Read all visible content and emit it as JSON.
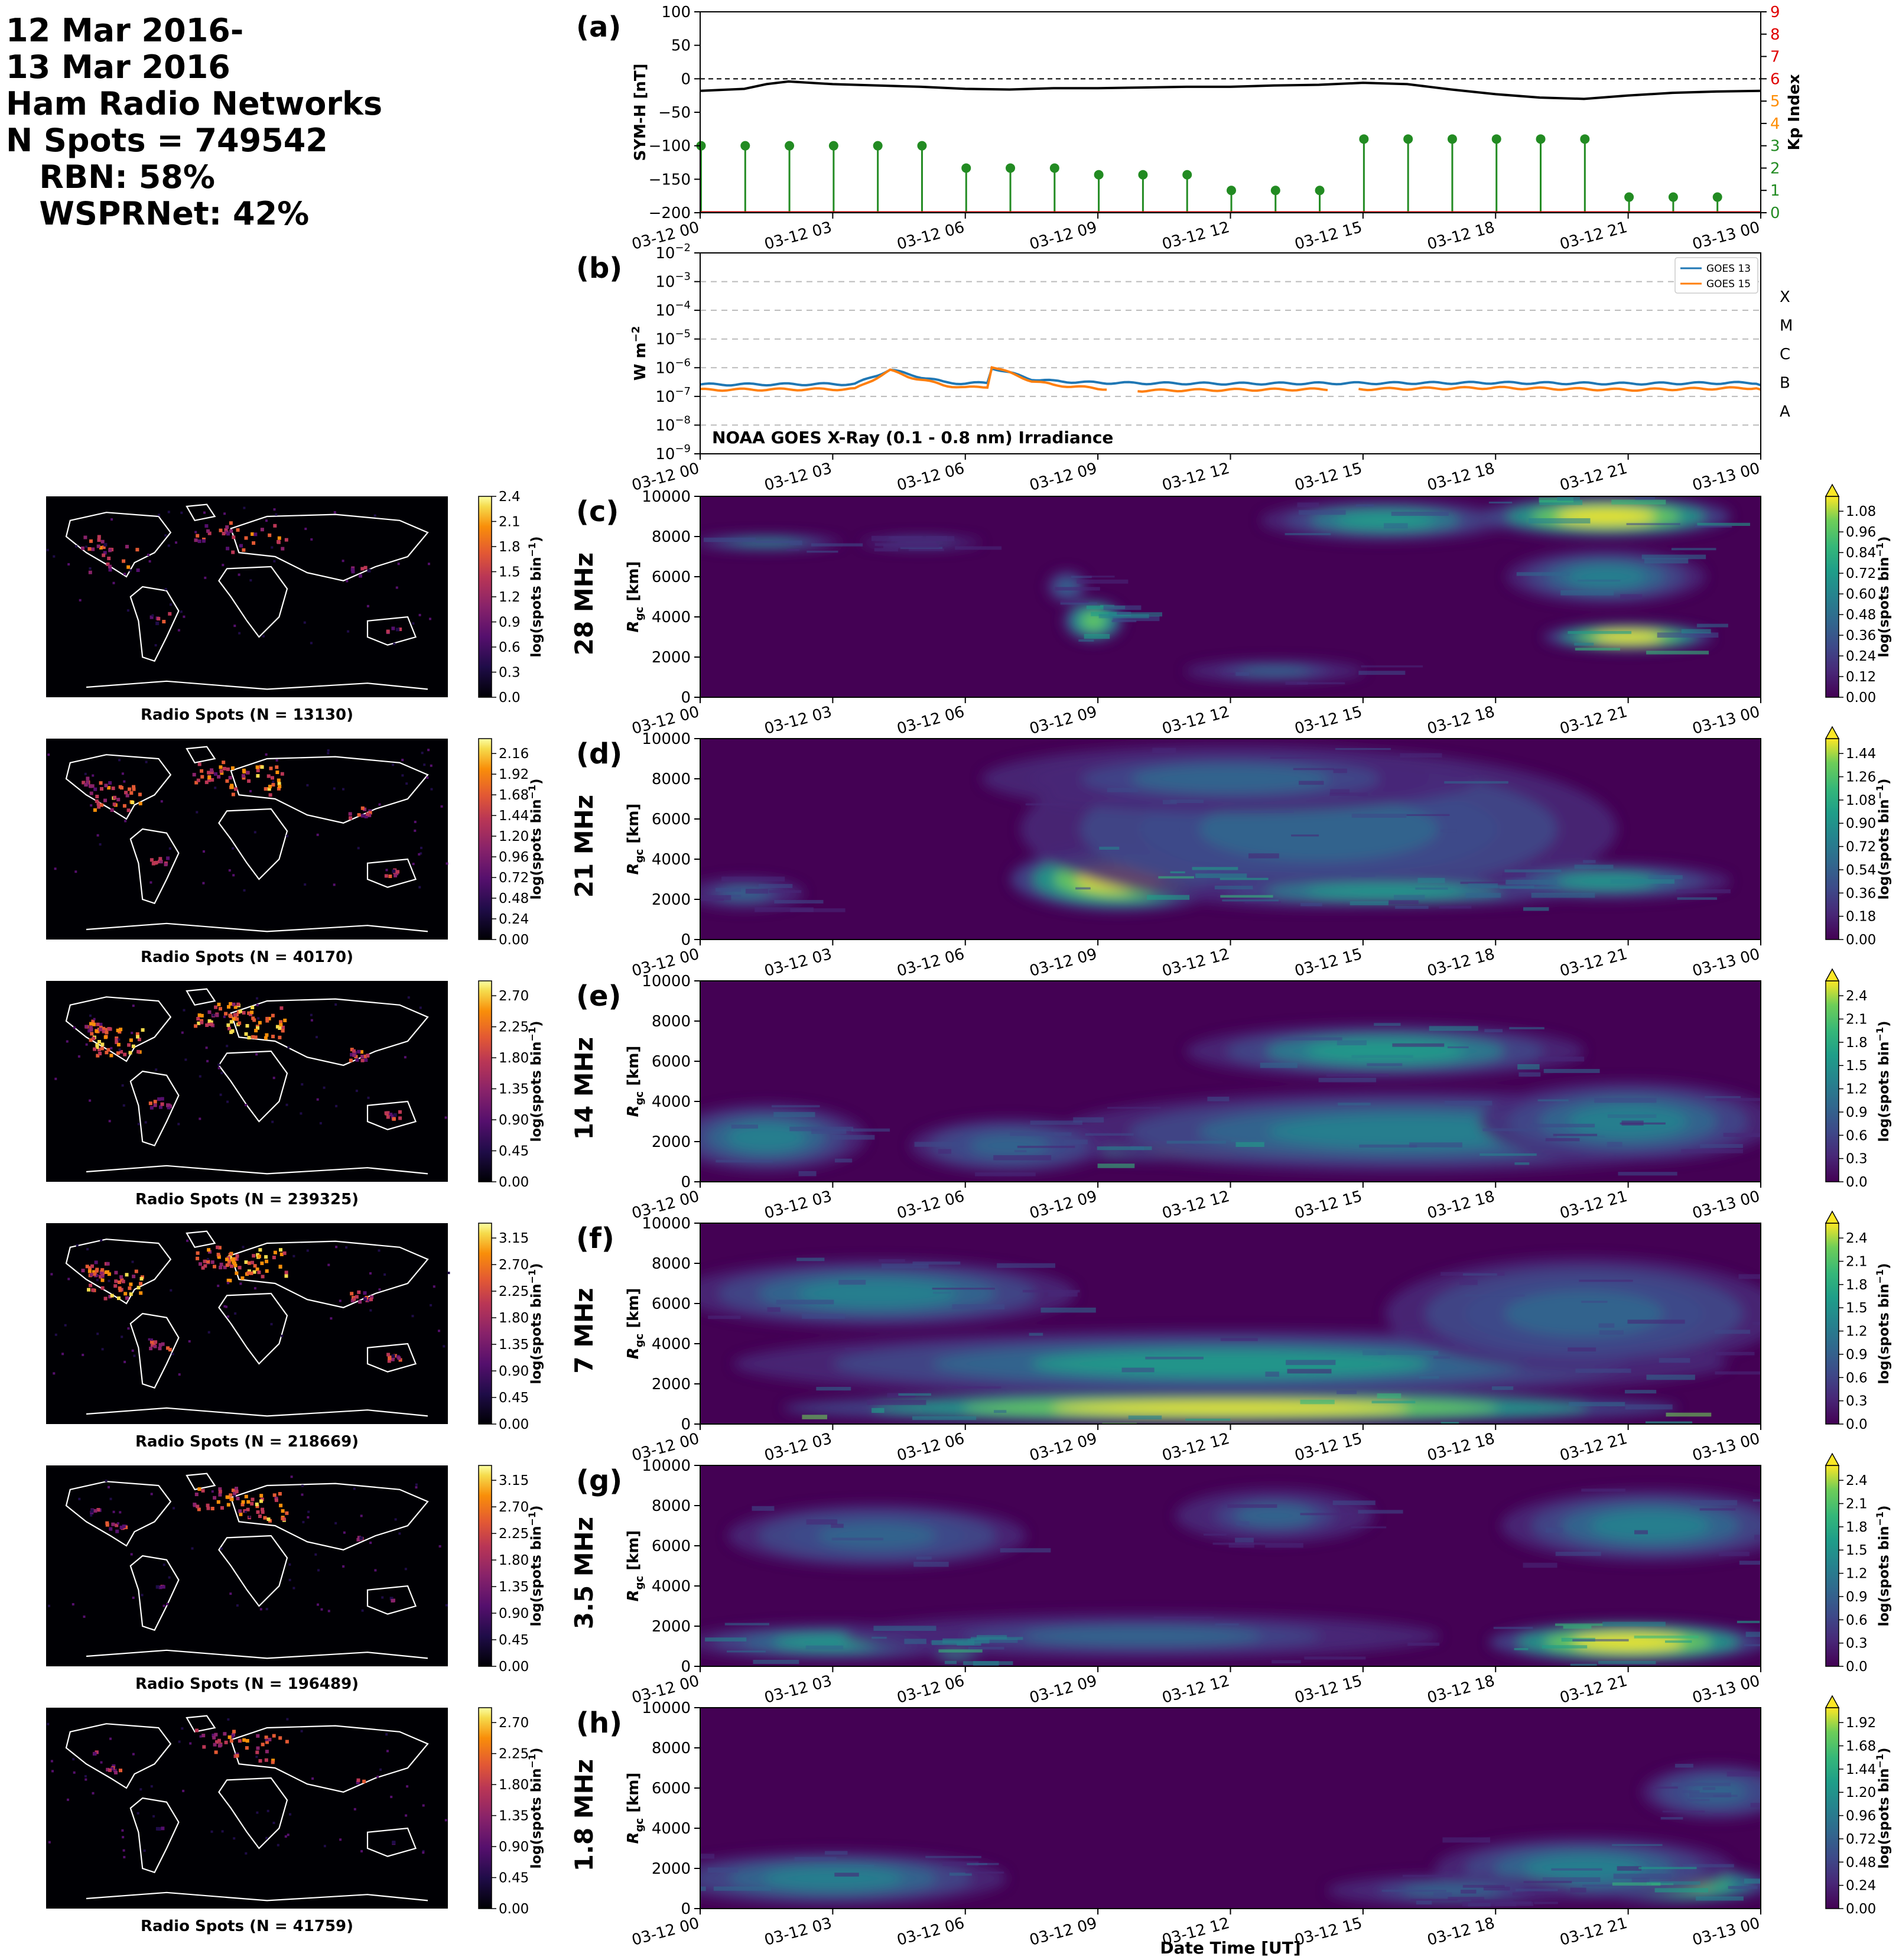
{
  "header": {
    "lines": [
      "12 Mar 2016-",
      "13 Mar 2016",
      "Ham Radio Networks",
      "N Spots = 749542",
      "   RBN: 58%",
      "   WSPRNet: 42%"
    ]
  },
  "time_ticks": [
    "03-12 00",
    "03-12 03",
    "03-12 06",
    "03-12 09",
    "03-12 12",
    "03-12 15",
    "03-12 18",
    "03-12 21",
    "03-13 00"
  ],
  "xlabel": "Date Time [UT]",
  "colors": {
    "symh": "#000000",
    "kp_green": "#228B22",
    "kp_axis_red": "#e00000",
    "kp_axis_orange": "#ff8c00",
    "goes13": "#1f77b4",
    "goes15": "#ff7f0e",
    "map_bg": "#000004",
    "viridis_low": "#440154",
    "viridis_high": "#fde725"
  },
  "chart_data": [
    {
      "id": "a",
      "panel_label": "(a)",
      "type": "line",
      "ylabel": "SYM-H [nT]",
      "ylim": [
        -200,
        100
      ],
      "yticks": [
        "100",
        "50",
        "0",
        "−50",
        "−100",
        "−150",
        "−200"
      ],
      "y2label": "Kp Index",
      "y2lim": [
        0,
        9
      ],
      "y2ticks": [
        "0",
        "1",
        "2",
        "3",
        "4",
        "5",
        "6",
        "7",
        "8",
        "9"
      ],
      "symh": {
        "x": [
          0,
          1,
          1.5,
          2,
          3,
          4,
          5,
          6,
          7,
          8,
          9,
          10,
          11,
          12,
          13,
          14,
          15,
          16,
          16.5,
          17,
          18,
          19,
          20,
          21,
          22,
          23,
          24
        ],
        "y": [
          -18,
          -15,
          -8,
          -4,
          -8,
          -10,
          -12,
          -15,
          -16,
          -14,
          -14,
          -13,
          -12,
          -12,
          -10,
          -9,
          -6,
          -8,
          -12,
          -16,
          -23,
          -28,
          -30,
          -25,
          -21,
          -19,
          -18
        ]
      },
      "kp": {
        "x": [
          0,
          1,
          2,
          3,
          4,
          5,
          6,
          7,
          8,
          9,
          10,
          11,
          12,
          13,
          14,
          15,
          16,
          17,
          18,
          19,
          20,
          21,
          22,
          23
        ],
        "y": [
          3.0,
          3.0,
          3.0,
          3.0,
          3.0,
          3.0,
          2.0,
          2.0,
          2.0,
          1.7,
          1.7,
          1.7,
          1.0,
          1.0,
          1.0,
          3.3,
          3.3,
          3.3,
          3.3,
          3.3,
          3.3,
          0.7,
          0.7,
          0.7
        ]
      }
    },
    {
      "id": "b",
      "panel_label": "(b)",
      "type": "line",
      "ylabel": "W m",
      "ylabel_sup": "−2",
      "yscale": "log",
      "ylim": [
        1e-09,
        0.01
      ],
      "ytick_exponents": [
        "−9",
        "−8",
        "−7",
        "−6",
        "−5",
        "−4",
        "−3",
        "−2"
      ],
      "class_labels": [
        "A",
        "B",
        "C",
        "M",
        "X"
      ],
      "annotation": "NOAA GOES X-Ray (0.1 - 0.8 nm) Irradiance",
      "series": [
        {
          "name": "GOES 13",
          "x": [
            0,
            3.5,
            4.3,
            4.7,
            5.5,
            6.0,
            6.5,
            6.6,
            7.5,
            8,
            9,
            10,
            12,
            15,
            18,
            21,
            24
          ],
          "y": [
            2.6e-07,
            2.7e-07,
            8.5e-07,
            6e-07,
            3.2e-07,
            2.8e-07,
            3e-07,
            1e-06,
            4e-07,
            3.4e-07,
            3e-07,
            2.9e-07,
            2.8e-07,
            2.9e-07,
            3e-07,
            2.8e-07,
            3e-07
          ]
        },
        {
          "name": "GOES 15",
          "x": [
            0,
            3.5,
            4.3,
            4.7,
            5.5,
            6.0,
            6.5,
            6.6,
            7.5,
            8,
            9,
            10,
            12,
            15,
            18,
            21,
            24
          ],
          "y": [
            1.7e-07,
            1.8e-07,
            8e-07,
            5e-07,
            2.5e-07,
            2e-07,
            2.2e-07,
            1.1e-06,
            3.5e-07,
            2.5e-07,
            1.9e-07,
            1.6e-07,
            1.7e-07,
            1.8e-07,
            2e-07,
            1.7e-07,
            2e-07
          ]
        }
      ],
      "gaps": [
        [
          9.2,
          9.8
        ],
        [
          14.2,
          14.8
        ]
      ]
    },
    {
      "id": "c",
      "panel_label": "(c)",
      "band": "28 MHz",
      "type": "heatmap",
      "ylabel": "R",
      "ylabel_sub": "gc",
      "ylabel_unit": " [km]",
      "yticks": [
        "0",
        "2000",
        "4000",
        "6000",
        "8000",
        "10000"
      ],
      "ylim": [
        0,
        10000
      ],
      "cbar_label": "log(spots bin",
      "cbar_sup": "−1",
      "cbar_ticks": [
        "0.00",
        "0.12",
        "0.24",
        "0.36",
        "0.48",
        "0.60",
        "0.72",
        "0.84",
        "0.96",
        "1.08"
      ],
      "cbar_max": 1.08,
      "map_title": "Radio Spots (N = 13130)",
      "map_cbar_ticks": [
        "0.0",
        "0.3",
        "0.6",
        "0.9",
        "1.2",
        "1.5",
        "1.8",
        "2.1",
        "2.4"
      ],
      "blobs": [
        {
          "t": 1.5,
          "r": 7700,
          "st": 1.5,
          "sr": 350,
          "a": 0.45
        },
        {
          "t": 5.0,
          "r": 7700,
          "st": 1.2,
          "sr": 300,
          "a": 0.25
        },
        {
          "t": 8.9,
          "r": 3800,
          "st": 0.6,
          "sr": 900,
          "a": 0.8
        },
        {
          "t": 8.3,
          "r": 5500,
          "st": 0.4,
          "sr": 700,
          "a": 0.35
        },
        {
          "t": 13.0,
          "r": 1300,
          "st": 1.8,
          "sr": 500,
          "a": 0.3
        },
        {
          "t": 15.5,
          "r": 8800,
          "st": 2.5,
          "sr": 900,
          "a": 0.55
        },
        {
          "t": 20.5,
          "r": 9000,
          "st": 2.5,
          "sr": 900,
          "a": 1.0
        },
        {
          "t": 21.0,
          "r": 3000,
          "st": 1.7,
          "sr": 600,
          "a": 1.0
        },
        {
          "t": 20.5,
          "r": 6000,
          "st": 2.0,
          "sr": 1200,
          "a": 0.45
        }
      ]
    },
    {
      "id": "d",
      "panel_label": "(d)",
      "band": "21 MHz",
      "type": "heatmap",
      "ylabel": "R",
      "ylabel_sub": "gc",
      "ylabel_unit": " [km]",
      "yticks": [
        "0",
        "2000",
        "4000",
        "6000",
        "8000",
        "10000"
      ],
      "ylim": [
        0,
        10000
      ],
      "cbar_label": "log(spots bin",
      "cbar_sup": "−1",
      "cbar_ticks": [
        "0.00",
        "0.18",
        "0.36",
        "0.54",
        "0.72",
        "0.90",
        "1.08",
        "1.26",
        "1.44"
      ],
      "cbar_max": 1.44,
      "map_title": "Radio Spots (N = 40170)",
      "map_cbar_ticks": [
        "0.00",
        "0.24",
        "0.48",
        "0.72",
        "0.96",
        "1.20",
        "1.44",
        "1.68",
        "1.92",
        "2.16"
      ],
      "blobs": [
        {
          "t": 1.0,
          "r": 2300,
          "st": 1.2,
          "sr": 700,
          "a": 0.3
        },
        {
          "t": 9.5,
          "r": 3000,
          "st": 2.2,
          "sr": 1400,
          "a": 1.0
        },
        {
          "t": 14.0,
          "r": 5500,
          "st": 6.0,
          "sr": 3500,
          "a": 0.35
        },
        {
          "t": 15.5,
          "r": 2400,
          "st": 4.0,
          "sr": 700,
          "a": 0.55
        },
        {
          "t": 20.5,
          "r": 2900,
          "st": 2.5,
          "sr": 800,
          "a": 0.5
        },
        {
          "t": 12.0,
          "r": 8000,
          "st": 5.0,
          "sr": 1500,
          "a": 0.3
        }
      ]
    },
    {
      "id": "e",
      "panel_label": "(e)",
      "band": "14 MHz",
      "type": "heatmap",
      "ylabel": "R",
      "ylabel_sub": "gc",
      "ylabel_unit": " [km]",
      "yticks": [
        "0",
        "2000",
        "4000",
        "6000",
        "8000",
        "10000"
      ],
      "ylim": [
        0,
        10000
      ],
      "cbar_label": "log(spots bin",
      "cbar_sup": "−1",
      "cbar_ticks": [
        "0.0",
        "0.3",
        "0.6",
        "0.9",
        "1.2",
        "1.5",
        "1.8",
        "2.1",
        "2.4"
      ],
      "cbar_max": 2.4,
      "map_title": "Radio Spots (N = 239325)",
      "map_cbar_ticks": [
        "0.00",
        "0.45",
        "0.90",
        "1.35",
        "1.80",
        "2.25",
        "2.70"
      ],
      "blobs": [
        {
          "t": 1.5,
          "r": 2200,
          "st": 2.0,
          "sr": 1500,
          "a": 0.4
        },
        {
          "t": 13.5,
          "r": 1500,
          "st": 5.0,
          "sr": 500,
          "a": 1.0
        },
        {
          "t": 16.0,
          "r": 2500,
          "st": 7.0,
          "sr": 1800,
          "a": 0.45
        },
        {
          "t": 15.5,
          "r": 6500,
          "st": 4.0,
          "sr": 1200,
          "a": 0.55
        },
        {
          "t": 21.0,
          "r": 3000,
          "st": 3.0,
          "sr": 1800,
          "a": 0.4
        },
        {
          "t": 7.0,
          "r": 1800,
          "st": 2.0,
          "sr": 1200,
          "a": 0.35
        }
      ]
    },
    {
      "id": "f",
      "panel_label": "(f)",
      "band": "7 MHz",
      "type": "heatmap",
      "ylabel": "R",
      "ylabel_sub": "gc",
      "ylabel_unit": " [km]",
      "yticks": [
        "0",
        "2000",
        "4000",
        "6000",
        "8000",
        "10000"
      ],
      "ylim": [
        0,
        10000
      ],
      "cbar_label": "log(spots bin",
      "cbar_sup": "−1",
      "cbar_ticks": [
        "0.0",
        "0.3",
        "0.6",
        "0.9",
        "1.2",
        "1.5",
        "1.8",
        "2.1",
        "2.4"
      ],
      "cbar_max": 2.4,
      "map_title": "Radio Spots (N = 218669)",
      "map_cbar_ticks": [
        "0.00",
        "0.45",
        "0.90",
        "1.35",
        "1.80",
        "2.25",
        "2.70",
        "3.15"
      ],
      "blobs": [
        {
          "t": 12.0,
          "r": 800,
          "st": 9.0,
          "sr": 700,
          "a": 1.0
        },
        {
          "t": 12.0,
          "r": 3000,
          "st": 10.0,
          "sr": 1500,
          "a": 0.5
        },
        {
          "t": 4.0,
          "r": 6500,
          "st": 4.0,
          "sr": 1500,
          "a": 0.4
        },
        {
          "t": 20.0,
          "r": 5500,
          "st": 4.0,
          "sr": 2500,
          "a": 0.35
        }
      ]
    },
    {
      "id": "g",
      "panel_label": "(g)",
      "band": "3.5 MHz",
      "type": "heatmap",
      "ylabel": "R",
      "ylabel_sub": "gc",
      "ylabel_unit": " [km]",
      "yticks": [
        "0",
        "2000",
        "4000",
        "6000",
        "8000",
        "10000"
      ],
      "ylim": [
        0,
        10000
      ],
      "cbar_label": "log(spots bin",
      "cbar_sup": "−1",
      "cbar_ticks": [
        "0.0",
        "0.3",
        "0.6",
        "0.9",
        "1.2",
        "1.5",
        "1.8",
        "2.1",
        "2.4"
      ],
      "cbar_max": 2.4,
      "map_title": "Radio Spots (N = 196489)",
      "map_cbar_ticks": [
        "0.00",
        "0.45",
        "0.90",
        "1.35",
        "1.80",
        "2.25",
        "2.70",
        "3.15"
      ],
      "blobs": [
        {
          "t": 21.0,
          "r": 1200,
          "st": 2.8,
          "sr": 900,
          "a": 1.0
        },
        {
          "t": 5.8,
          "r": 900,
          "st": 0.6,
          "sr": 600,
          "a": 0.8
        },
        {
          "t": 3.0,
          "r": 1200,
          "st": 3.0,
          "sr": 800,
          "a": 0.5
        },
        {
          "t": 4.0,
          "r": 6500,
          "st": 3.0,
          "sr": 1400,
          "a": 0.35
        },
        {
          "t": 13.0,
          "r": 7500,
          "st": 2.0,
          "sr": 1200,
          "a": 0.3
        },
        {
          "t": 21.5,
          "r": 7000,
          "st": 3.0,
          "sr": 1600,
          "a": 0.4
        },
        {
          "t": 10.0,
          "r": 1500,
          "st": 6.0,
          "sr": 1000,
          "a": 0.28
        }
      ]
    },
    {
      "id": "h",
      "panel_label": "(h)",
      "band": "1.8 MHz",
      "type": "heatmap",
      "ylabel": "R",
      "ylabel_sub": "gc",
      "ylabel_unit": " [km]",
      "yticks": [
        "0",
        "2000",
        "4000",
        "6000",
        "8000",
        "10000"
      ],
      "ylim": [
        0,
        10000
      ],
      "cbar_label": "log(spots bin",
      "cbar_sup": "−1",
      "cbar_ticks": [
        "0.00",
        "0.24",
        "0.48",
        "0.72",
        "0.96",
        "1.20",
        "1.44",
        "1.68",
        "1.92"
      ],
      "cbar_max": 1.92,
      "map_title": "Radio Spots (N = 41759)",
      "map_cbar_ticks": [
        "0.00",
        "0.45",
        "0.90",
        "1.35",
        "1.80",
        "2.25",
        "2.70"
      ],
      "blobs": [
        {
          "t": 22.0,
          "r": 1200,
          "st": 2.0,
          "sr": 800,
          "a": 0.9
        },
        {
          "t": 3.0,
          "r": 1500,
          "st": 3.5,
          "sr": 1200,
          "a": 0.45
        },
        {
          "t": 20.0,
          "r": 2000,
          "st": 3.0,
          "sr": 1400,
          "a": 0.4
        },
        {
          "t": 23.0,
          "r": 5800,
          "st": 1.5,
          "sr": 1200,
          "a": 0.35
        },
        {
          "t": 17.0,
          "r": 900,
          "st": 2.5,
          "sr": 700,
          "a": 0.3
        }
      ]
    }
  ]
}
